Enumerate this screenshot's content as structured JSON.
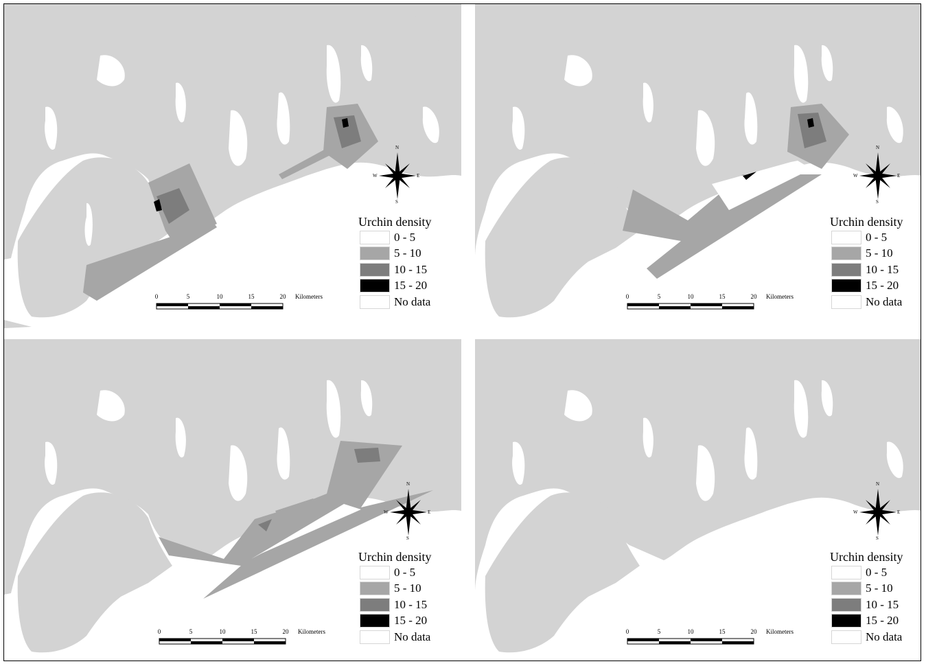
{
  "legend": {
    "title": "Urchin density",
    "classes": [
      {
        "label": "0 - 5",
        "color": "#ffffff"
      },
      {
        "label": "5 - 10",
        "color": "#a6a6a6"
      },
      {
        "label": "10 - 15",
        "color": "#7d7d7d"
      },
      {
        "label": "15 - 20",
        "color": "#000000"
      },
      {
        "label": "No data",
        "color": "#ffffff"
      }
    ]
  },
  "scale": {
    "ticks": [
      "0",
      "5",
      "10",
      "15",
      "20"
    ],
    "unit": "Kilometers"
  },
  "compass": {
    "n": "N",
    "s": "S",
    "e": "E",
    "w": "W"
  },
  "colors": {
    "land": "#d3d3d3",
    "water": "#ffffff",
    "frame": "#000000"
  }
}
